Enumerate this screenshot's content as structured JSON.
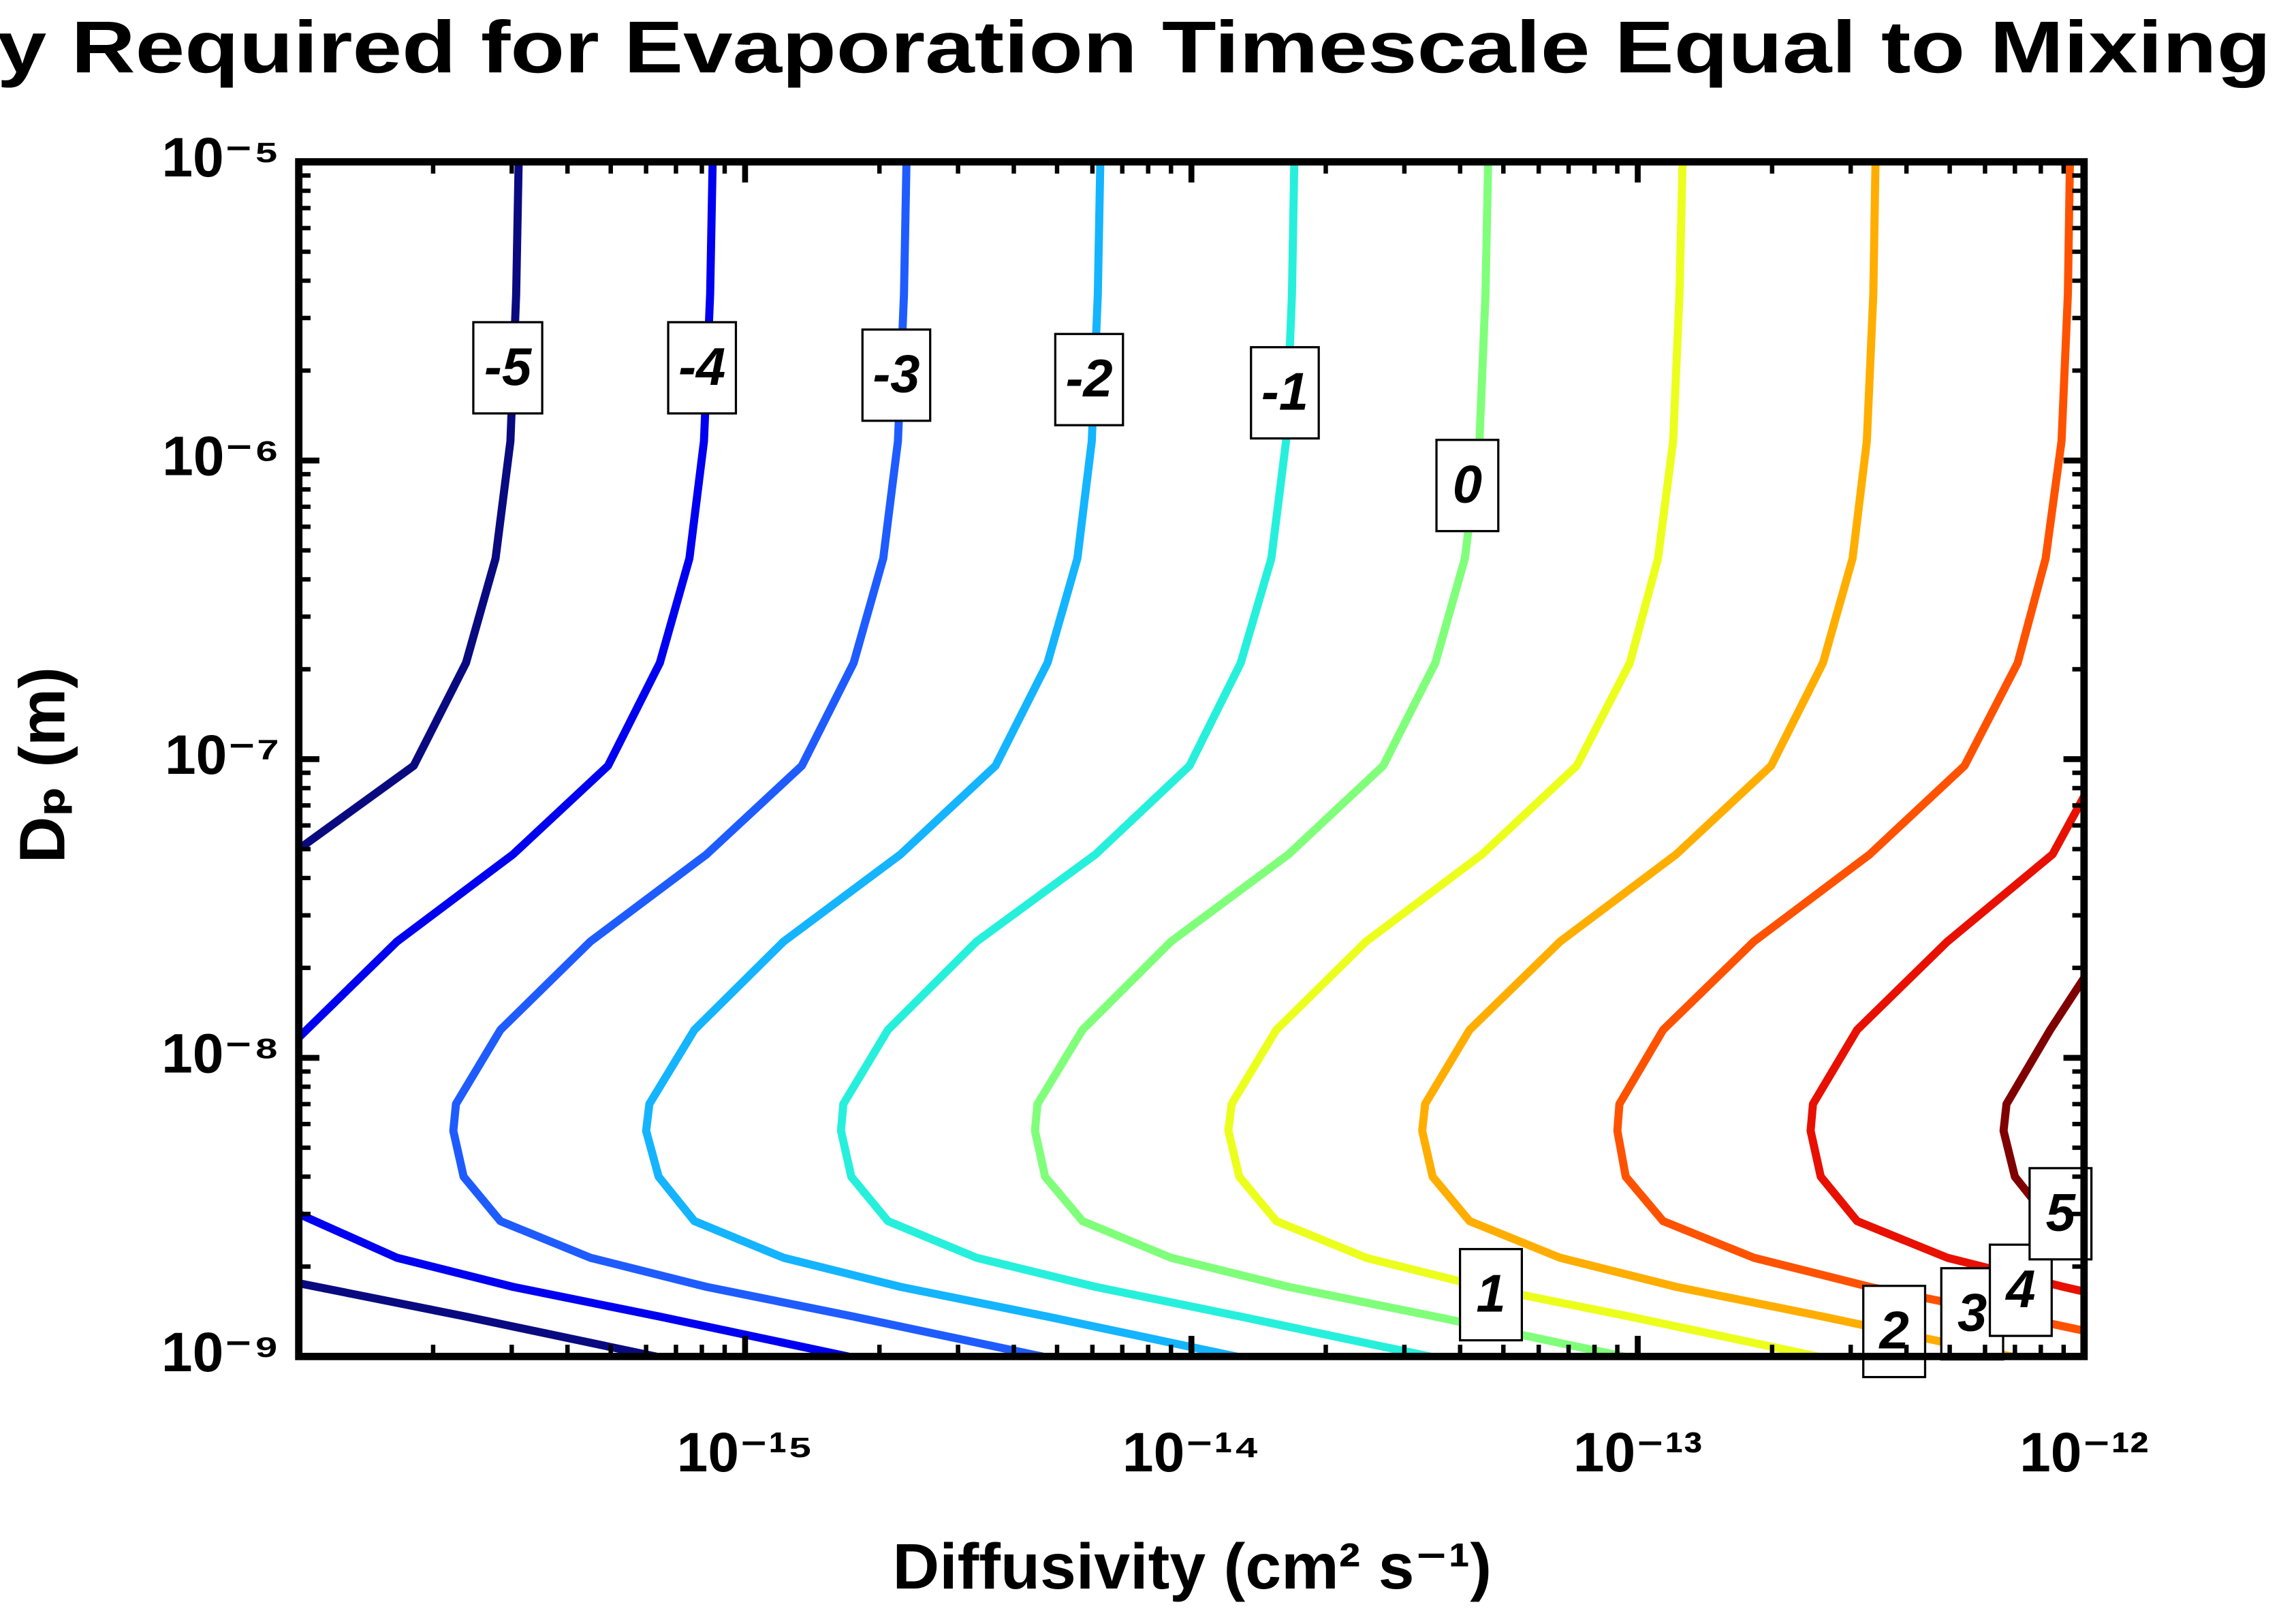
{
  "chart_data": {
    "type": "contour",
    "title": "y Required for Evaporation Timescale Equal to Mixing",
    "x_label": "Diffusivity (cm² s⁻¹)",
    "y_label": "Dₚ (m)",
    "xscale": "log",
    "yscale": "log",
    "xlim": [
      1e-16,
      1e-12
    ],
    "ylim": [
      1e-09,
      1e-05
    ],
    "xticks": [
      {
        "value": 1e-15,
        "label": "10⁻¹⁵"
      },
      {
        "value": 1e-14,
        "label": "10⁻¹⁴"
      },
      {
        "value": 1e-13,
        "label": "10⁻¹³"
      },
      {
        "value": 1e-12,
        "label": "10⁻¹²"
      }
    ],
    "yticks": [
      {
        "value": 1e-09,
        "label": "10⁻⁹"
      },
      {
        "value": 1e-08,
        "label": "10⁻⁸"
      },
      {
        "value": 1e-07,
        "label": "10⁻⁷"
      },
      {
        "value": 1e-06,
        "label": "10⁻⁶"
      },
      {
        "value": 1e-05,
        "label": "10⁻⁵"
      }
    ],
    "minor_ticks": true,
    "series": [
      {
        "level": -5,
        "color": "#0a0a80",
        "x": [
          3.11e-16,
          3.07e-16,
          2.98e-16,
          2.76e-16,
          2.37e-16,
          1.81e-16,
          1e-16,
          null,
          1e-16,
          2.37e-16,
          6.3e-16
        ],
        "y": [
          1e-05,
          3.6e-06,
          1.16e-06,
          4.7e-07,
          2.1e-07,
          9.5e-08,
          5e-08,
          null,
          1.76e-09,
          1.36e-09,
          1e-09
        ]
      },
      {
        "level": -4,
        "color": "#0000f0",
        "x": [
          8.46e-16,
          8.35e-16,
          8.09e-16,
          7.5e-16,
          6.44e-16,
          4.93e-16,
          3.02e-16,
          1.66e-16,
          1e-16,
          null,
          1e-16,
          1.66e-16,
          3.02e-16,
          6.44e-16,
          1.7e-15
        ],
        "y": [
          1e-05,
          3.6e-06,
          1.16e-06,
          4.7e-07,
          2.1e-07,
          9.5e-08,
          4.8e-08,
          2.45e-08,
          1.17e-08,
          null,
          3e-09,
          2.14e-09,
          1.71e-09,
          1.36e-09,
          1e-09
        ]
      },
      {
        "level": -3,
        "color": "#1f5cff",
        "x": [
          2.3e-15,
          2.27e-15,
          2.2e-15,
          2.04e-15,
          1.75e-15,
          1.34e-15,
          8.2e-16,
          4.5e-16,
          2.83e-16,
          2.25e-16,
          2.22e-16,
          2.34e-16,
          2.83e-16,
          4.5e-16,
          8.2e-16,
          1.75e-15,
          4.63e-15
        ],
        "y": [
          1e-05,
          3.6e-06,
          1.16e-06,
          4.7e-07,
          2.1e-07,
          9.5e-08,
          4.8e-08,
          2.45e-08,
          1.24e-08,
          7e-09,
          5.7e-09,
          4e-09,
          2.84e-09,
          2.14e-09,
          1.71e-09,
          1.36e-09,
          1e-09
        ]
      },
      {
        "level": -2,
        "color": "#14b4ff",
        "x": [
          6.25e-15,
          6.17e-15,
          5.98e-15,
          5.55e-15,
          4.76e-15,
          3.64e-15,
          2.23e-15,
          1.22e-15,
          7.7e-16,
          6.1e-16,
          6e-16,
          6.4e-16,
          7.7e-16,
          1.22e-15,
          2.23e-15,
          4.76e-15,
          1.26e-14
        ],
        "y": [
          1e-05,
          3.6e-06,
          1.16e-06,
          4.7e-07,
          2.1e-07,
          9.5e-08,
          4.8e-08,
          2.45e-08,
          1.24e-08,
          7e-09,
          5.7e-09,
          4e-09,
          2.84e-09,
          2.14e-09,
          1.71e-09,
          1.36e-09,
          1e-09
        ]
      },
      {
        "level": -1,
        "color": "#26f0dc",
        "x": [
          1.7e-14,
          1.68e-14,
          1.63e-14,
          1.51e-14,
          1.29e-14,
          9.9e-15,
          6.1e-15,
          3.3e-15,
          2.09e-15,
          1.66e-15,
          1.64e-15,
          1.73e-15,
          2.09e-15,
          3.3e-15,
          6.1e-15,
          1.29e-14,
          3.42e-14
        ],
        "y": [
          1e-05,
          3.6e-06,
          1.16e-06,
          4.7e-07,
          2.1e-07,
          9.5e-08,
          4.8e-08,
          2.45e-08,
          1.24e-08,
          7e-09,
          5.7e-09,
          4e-09,
          2.84e-09,
          2.14e-09,
          1.71e-09,
          1.36e-09,
          1e-09
        ]
      },
      {
        "level": 0,
        "color": "#80ff7a",
        "x": [
          4.62e-14,
          4.56e-14,
          4.42e-14,
          4.1e-14,
          3.52e-14,
          2.69e-14,
          1.65e-14,
          9e-15,
          5.7e-15,
          4.52e-15,
          4.46e-15,
          4.7e-15,
          5.7e-15,
          9e-15,
          1.65e-14,
          3.52e-14,
          9.3e-14
        ],
        "y": [
          1e-05,
          3.6e-06,
          1.16e-06,
          4.7e-07,
          2.1e-07,
          9.5e-08,
          4.8e-08,
          2.45e-08,
          1.24e-08,
          7e-09,
          5.7e-09,
          4e-09,
          2.84e-09,
          2.14e-09,
          1.71e-09,
          1.36e-09,
          1e-09
        ]
      },
      {
        "level": 1,
        "color": "#ecff1c",
        "x": [
          1.26e-13,
          1.24e-13,
          1.2e-13,
          1.11e-13,
          9.6e-14,
          7.3e-14,
          4.48e-14,
          2.46e-14,
          1.55e-14,
          1.23e-14,
          1.21e-14,
          1.28e-14,
          1.55e-14,
          2.46e-14,
          4.48e-14,
          9.6e-14,
          2.53e-13
        ],
        "y": [
          1e-05,
          3.6e-06,
          1.16e-06,
          4.7e-07,
          2.1e-07,
          9.5e-08,
          4.8e-08,
          2.45e-08,
          1.24e-08,
          7e-09,
          5.7e-09,
          4e-09,
          2.84e-09,
          2.14e-09,
          1.71e-09,
          1.36e-09,
          1e-09
        ]
      },
      {
        "level": 2,
        "color": "#ffae00",
        "x": [
          3.41e-13,
          3.37e-13,
          3.26e-13,
          3.03e-13,
          2.6e-13,
          1.99e-13,
          1.22e-13,
          6.7e-14,
          4.2e-14,
          3.34e-14,
          3.29e-14,
          3.47e-14,
          4.2e-14,
          6.7e-14,
          1.22e-13,
          2.6e-13,
          6.87e-13
        ],
        "y": [
          1e-05,
          3.6e-06,
          1.16e-06,
          4.7e-07,
          2.1e-07,
          9.5e-08,
          4.8e-08,
          2.45e-08,
          1.24e-08,
          7e-09,
          5.7e-09,
          4e-09,
          2.84e-09,
          2.14e-09,
          1.71e-09,
          1.36e-09,
          1e-09
        ]
      },
      {
        "level": 3,
        "color": "#ff5200",
        "x": [
          9.3e-13,
          9.2e-13,
          8.9e-13,
          8.2e-13,
          7.1e-13,
          5.4e-13,
          3.31e-13,
          1.82e-13,
          1.14e-13,
          9.1e-14,
          9e-14,
          9.4e-14,
          1.14e-13,
          1.82e-13,
          3.31e-13,
          7.1e-13,
          1e-12
        ],
        "y": [
          1e-05,
          3.6e-06,
          1.16e-06,
          4.7e-07,
          2.1e-07,
          9.5e-08,
          4.8e-08,
          2.45e-08,
          1.24e-08,
          7e-09,
          5.7e-09,
          4e-09,
          2.84e-09,
          2.14e-09,
          1.71e-09,
          1.36e-09,
          1.22e-09
        ]
      },
      {
        "level": 4,
        "color": "#e81000",
        "x": [
          1e-12,
          8.5e-13,
          4.94e-13,
          3.1e-13,
          2.47e-13,
          2.44e-13,
          2.57e-13,
          3.1e-13,
          4.94e-13,
          9e-13,
          1e-12
        ],
        "y": [
          7.5e-08,
          4.8e-08,
          2.45e-08,
          1.24e-08,
          7e-09,
          5.7e-09,
          4e-09,
          2.84e-09,
          2.14e-09,
          1.71e-09,
          1.65e-09
        ]
      },
      {
        "level": 5,
        "color": "#800000",
        "x": [
          1e-12,
          8.4e-13,
          6.7e-13,
          6.6e-13,
          7e-13,
          8.4e-13,
          1e-12
        ],
        "y": [
          1.85e-08,
          1.24e-08,
          7e-09,
          5.7e-09,
          4e-09,
          2.84e-09,
          2.4e-09
        ]
      }
    ]
  }
}
